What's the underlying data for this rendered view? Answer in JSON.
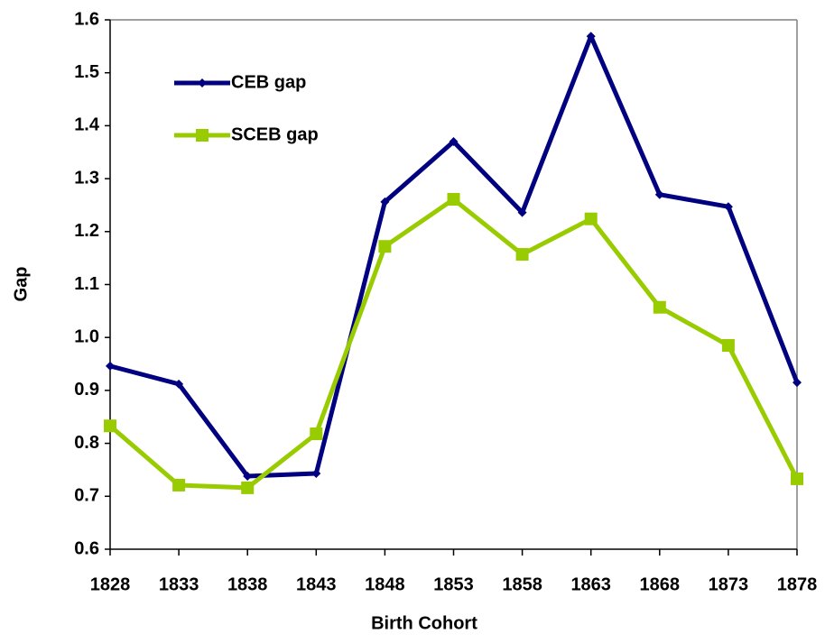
{
  "chart_data": {
    "type": "line",
    "x_label": "Birth Cohort",
    "y_label": "Gap",
    "categories": [
      "1828",
      "1833",
      "1838",
      "1843",
      "1848",
      "1853",
      "1858",
      "1863",
      "1868",
      "1873",
      "1878"
    ],
    "series": [
      {
        "name": "CEB gap",
        "color": "#000080",
        "marker": "diamond",
        "values": [
          0.946,
          0.912,
          0.738,
          0.743,
          1.256,
          1.37,
          1.236,
          1.569,
          1.27,
          1.247,
          0.915
        ]
      },
      {
        "name": "SCEB gap",
        "color": "#99cc00",
        "marker": "square",
        "values": [
          0.833,
          0.721,
          0.716,
          0.818,
          1.172,
          1.261,
          1.157,
          1.224,
          1.057,
          0.985,
          0.733
        ]
      }
    ],
    "ylim": [
      0.6,
      1.6
    ],
    "yticks": [
      0.6,
      0.7,
      0.8,
      0.9,
      {
        "value": 1,
        "label": "1.0"
      },
      1.1,
      1.2,
      1.3,
      1.4,
      1.5,
      1.6
    ],
    "grid": false,
    "legend": "upper-left"
  }
}
